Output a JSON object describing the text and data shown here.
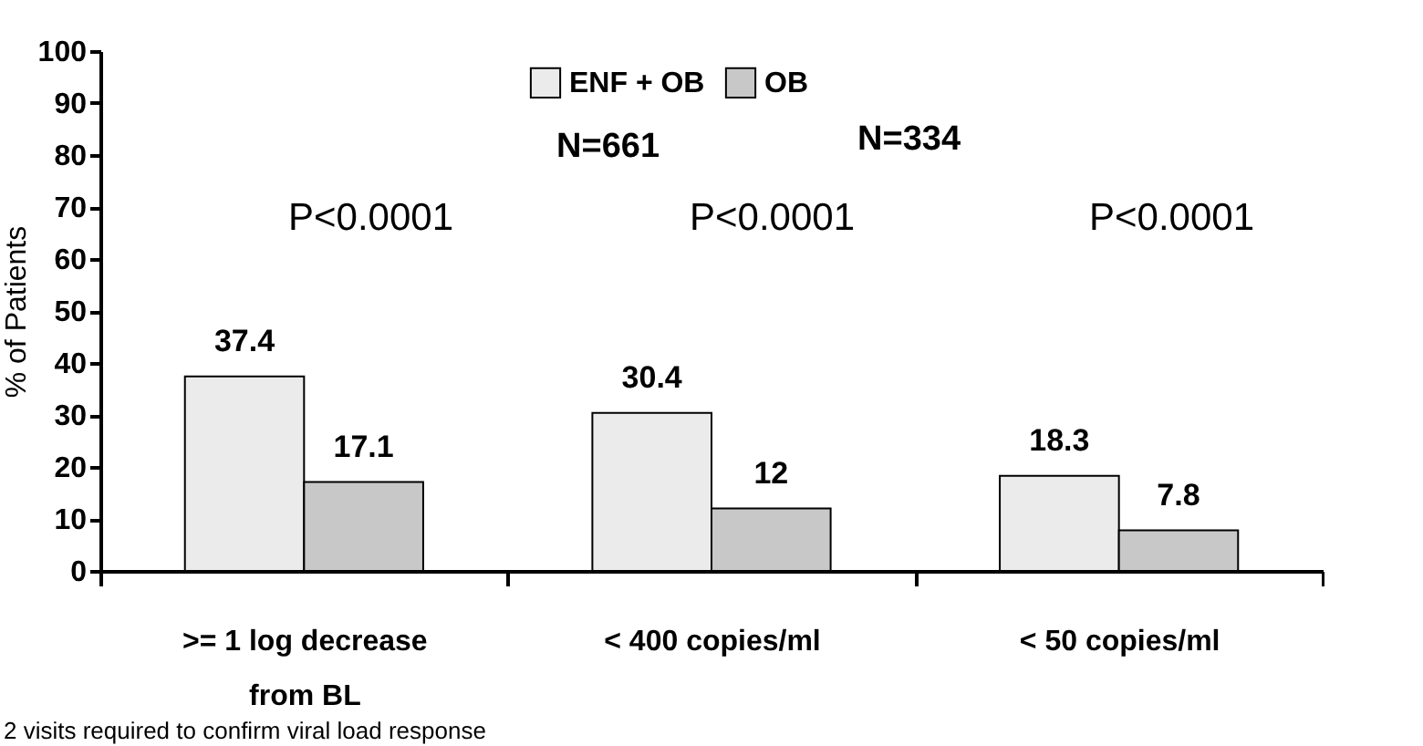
{
  "chart_data": {
    "type": "bar",
    "ylabel": "% of Patients",
    "categories": [
      ">= 1 log decrease from BL",
      "< 400 copies/ml",
      "< 50 copies/ml"
    ],
    "series": [
      {
        "name": "ENF + OB",
        "color": "#ebebeb",
        "values": [
          37.4,
          30.4,
          18.3
        ]
      },
      {
        "name": "OB",
        "color": "#c8c8c8",
        "values": [
          17.1,
          12,
          7.8
        ]
      }
    ],
    "ylim": [
      0,
      100
    ],
    "yticks": [
      0,
      10,
      20,
      30,
      40,
      50,
      60,
      70,
      80,
      90,
      100
    ],
    "grid": false,
    "legend": "top",
    "data_labels": true,
    "annotations": [
      "P<0.0001",
      "P<0.0001",
      "P<0.0001",
      "N=661",
      "N=334",
      "2 visits required to confirm viral load response"
    ]
  }
}
